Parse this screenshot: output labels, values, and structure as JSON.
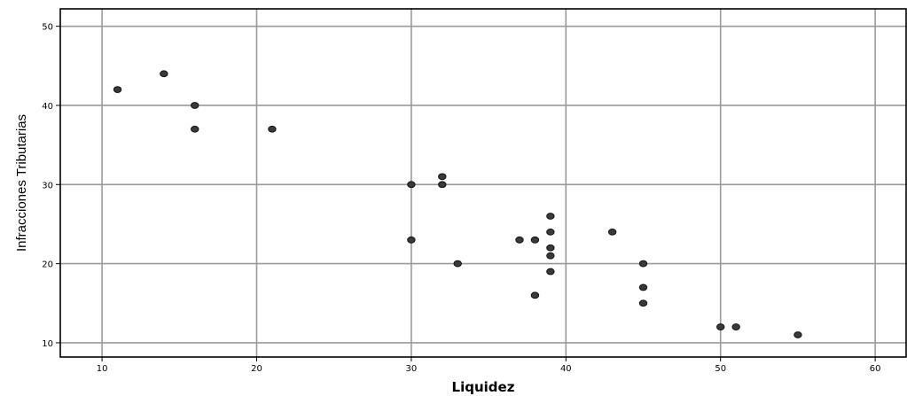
{
  "chart_data": {
    "type": "scatter",
    "xlabel": "Liquidez",
    "ylabel": "Infracciones Tributarias",
    "xlim": [
      7.3,
      62
    ],
    "ylim": [
      8.2,
      52.2
    ],
    "xticks": [
      10,
      20,
      30,
      40,
      50,
      60
    ],
    "yticks": [
      10,
      20,
      30,
      40,
      50
    ],
    "grid": true,
    "points": [
      {
        "x": 11,
        "y": 42
      },
      {
        "x": 14,
        "y": 44
      },
      {
        "x": 16,
        "y": 40
      },
      {
        "x": 16,
        "y": 37
      },
      {
        "x": 21,
        "y": 37
      },
      {
        "x": 30,
        "y": 30
      },
      {
        "x": 30,
        "y": 23
      },
      {
        "x": 32,
        "y": 31
      },
      {
        "x": 32,
        "y": 30
      },
      {
        "x": 33,
        "y": 20
      },
      {
        "x": 37,
        "y": 23
      },
      {
        "x": 38,
        "y": 23
      },
      {
        "x": 38,
        "y": 16
      },
      {
        "x": 39,
        "y": 26
      },
      {
        "x": 39,
        "y": 24
      },
      {
        "x": 39,
        "y": 22
      },
      {
        "x": 39,
        "y": 21
      },
      {
        "x": 39,
        "y": 19
      },
      {
        "x": 43,
        "y": 24
      },
      {
        "x": 45,
        "y": 20
      },
      {
        "x": 45,
        "y": 17
      },
      {
        "x": 45,
        "y": 15
      },
      {
        "x": 50,
        "y": 12
      },
      {
        "x": 51,
        "y": 12
      },
      {
        "x": 55,
        "y": 11
      }
    ]
  }
}
